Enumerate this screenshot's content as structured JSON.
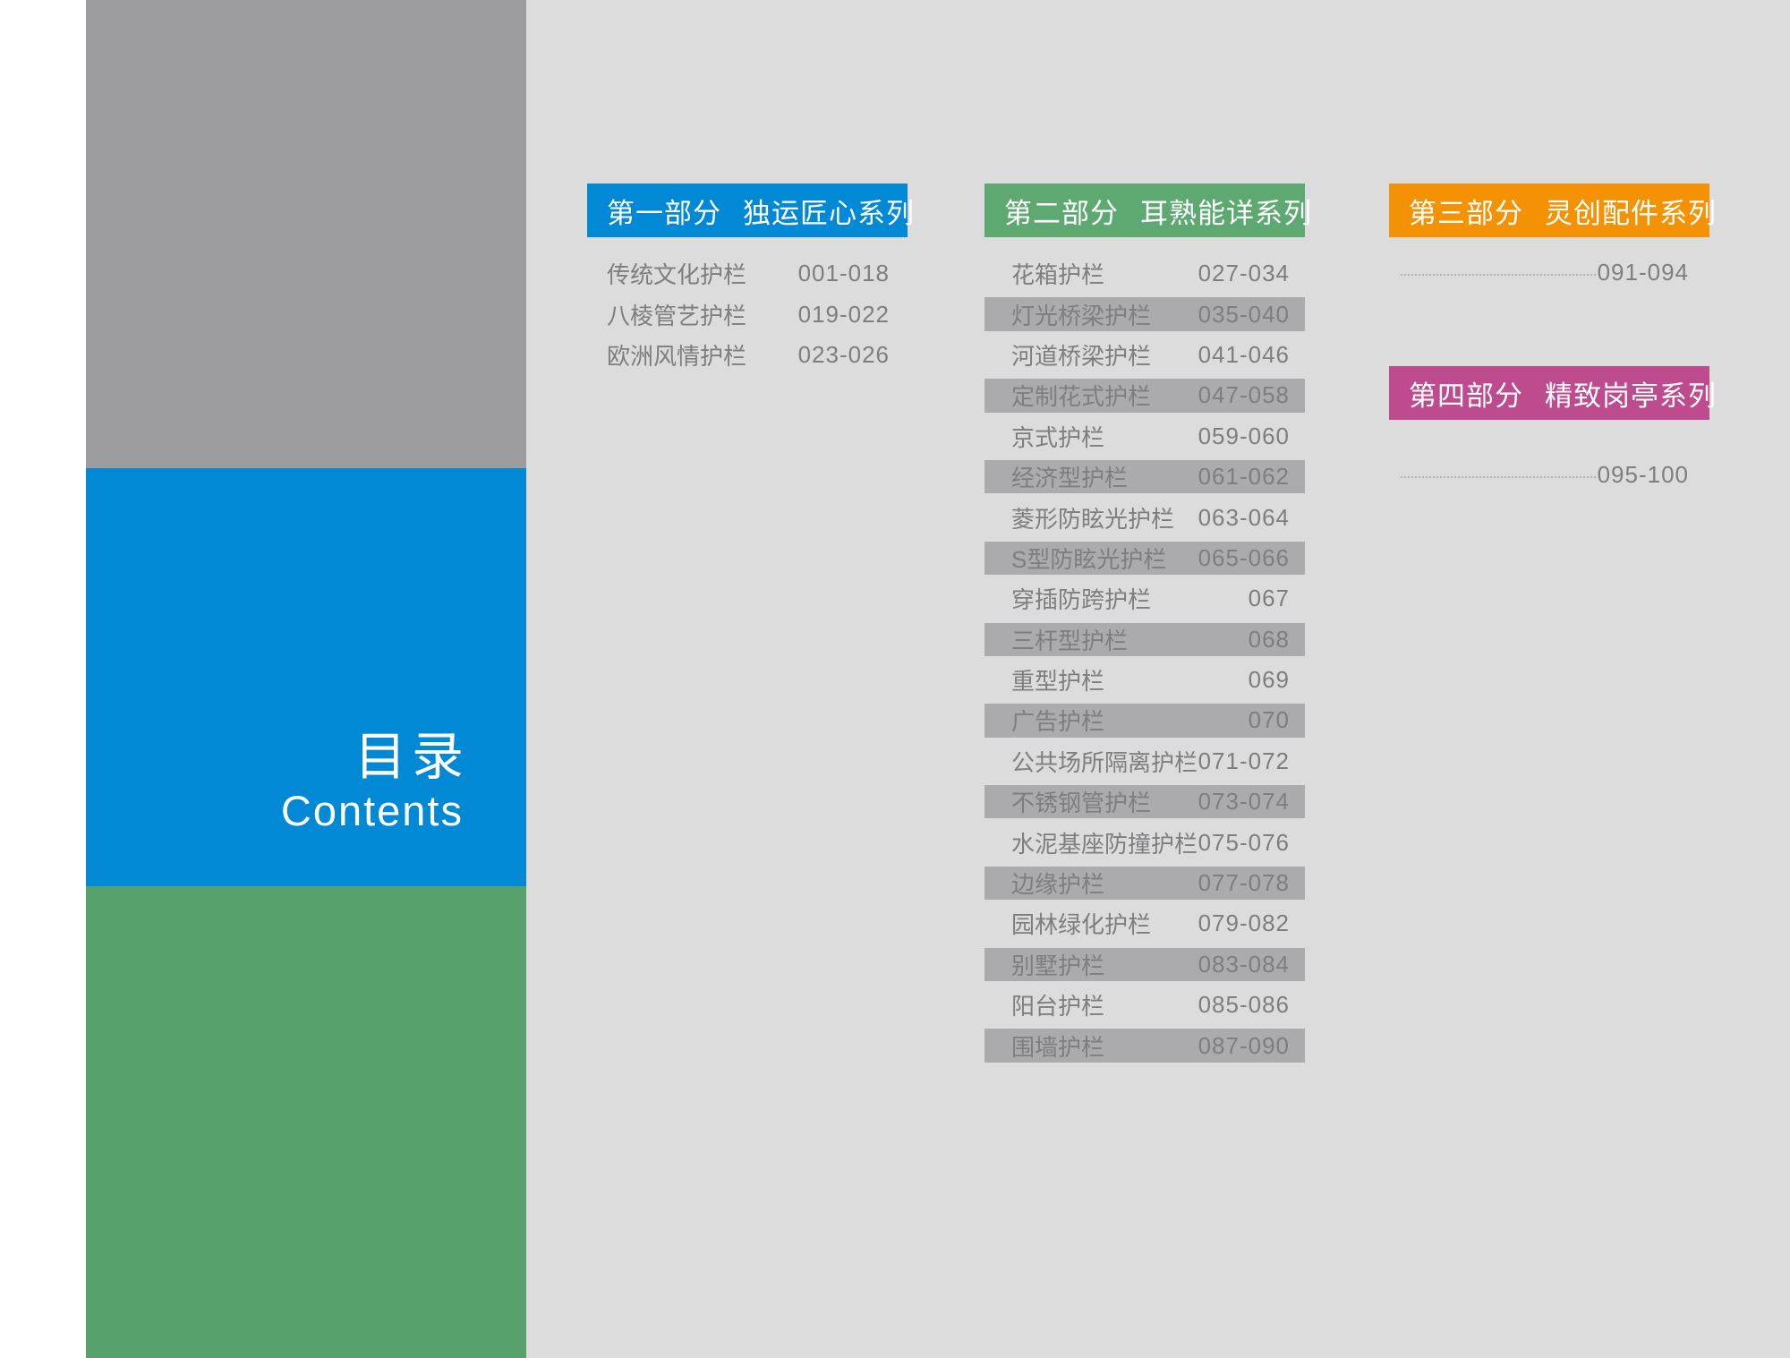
{
  "colors": {
    "page_bg": "#dcdcdc",
    "margin_white": "#ffffff",
    "sidebar_gray": "#9d9da0",
    "blue": "#0289d5",
    "sidebar_green": "#57a26c",
    "header_green": "#5ea972",
    "orange": "#f39204",
    "magenta": "#bd4b8e",
    "stripe": "#ababad",
    "text_gray": "#7e7e80"
  },
  "sidebar": {
    "title_cn": "目录",
    "title_en": "Contents"
  },
  "sections": [
    {
      "part": "第一部分",
      "name": "独运匠心系列",
      "items": [
        {
          "label": "传统文化护栏",
          "pages": "001-018",
          "striped": false
        },
        {
          "label": "八棱管艺护栏",
          "pages": "019-022",
          "striped": false
        },
        {
          "label": "欧洲风情护栏",
          "pages": "023-026",
          "striped": false
        }
      ]
    },
    {
      "part": "第二部分",
      "name": "耳熟能详系列",
      "items": [
        {
          "label": "花箱护栏",
          "pages": "027-034",
          "striped": false
        },
        {
          "label": "灯光桥梁护栏",
          "pages": "035-040",
          "striped": true
        },
        {
          "label": "河道桥梁护栏",
          "pages": "041-046",
          "striped": false
        },
        {
          "label": "定制花式护栏",
          "pages": "047-058",
          "striped": true
        },
        {
          "label": "京式护栏",
          "pages": "059-060",
          "striped": false
        },
        {
          "label": "经济型护栏",
          "pages": "061-062",
          "striped": true
        },
        {
          "label": "菱形防眩光护栏",
          "pages": "063-064",
          "striped": false
        },
        {
          "label": "S型防眩光护栏",
          "pages": "065-066",
          "striped": true
        },
        {
          "label": "穿插防跨护栏",
          "pages": "067",
          "striped": false
        },
        {
          "label": "三杆型护栏",
          "pages": "068",
          "striped": true
        },
        {
          "label": "重型护栏",
          "pages": "069",
          "striped": false
        },
        {
          "label": "广告护栏",
          "pages": "070",
          "striped": true
        },
        {
          "label": "公共场所隔离护栏",
          "pages": "071-072",
          "striped": false
        },
        {
          "label": "不锈钢管护栏",
          "pages": "073-074",
          "striped": true
        },
        {
          "label": "水泥基座防撞护栏",
          "pages": "075-076",
          "striped": false
        },
        {
          "label": "边缘护栏",
          "pages": "077-078",
          "striped": true
        },
        {
          "label": "园林绿化护栏",
          "pages": "079-082",
          "striped": false
        },
        {
          "label": "别墅护栏",
          "pages": "083-084",
          "striped": true
        },
        {
          "label": "阳台护栏",
          "pages": "085-086",
          "striped": false
        },
        {
          "label": "围墙护栏",
          "pages": "087-090",
          "striped": true
        }
      ]
    },
    {
      "part": "第三部分",
      "name": "灵创配件系列",
      "pages": "091-094"
    },
    {
      "part": "第四部分",
      "name": "精致岗亭系列",
      "pages": "095-100"
    }
  ]
}
